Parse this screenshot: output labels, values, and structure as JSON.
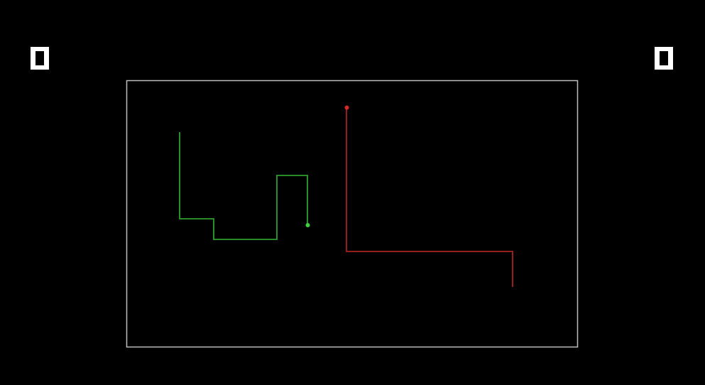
{
  "scores": {
    "left": "0",
    "right": "0"
  },
  "colors": {
    "background": "#000000",
    "border": "#bdbdbd",
    "score": "#ffffff",
    "green_player": "#2f9e2f",
    "green_head": "#3fcf3f",
    "red_player": "#a82222",
    "red_head": "#d62a2a"
  },
  "players": [
    {
      "name": "green-player",
      "color_key": "green_player",
      "head_color_key": "green_head"
    },
    {
      "name": "red-player",
      "color_key": "red_player",
      "head_color_key": "red_head"
    }
  ]
}
